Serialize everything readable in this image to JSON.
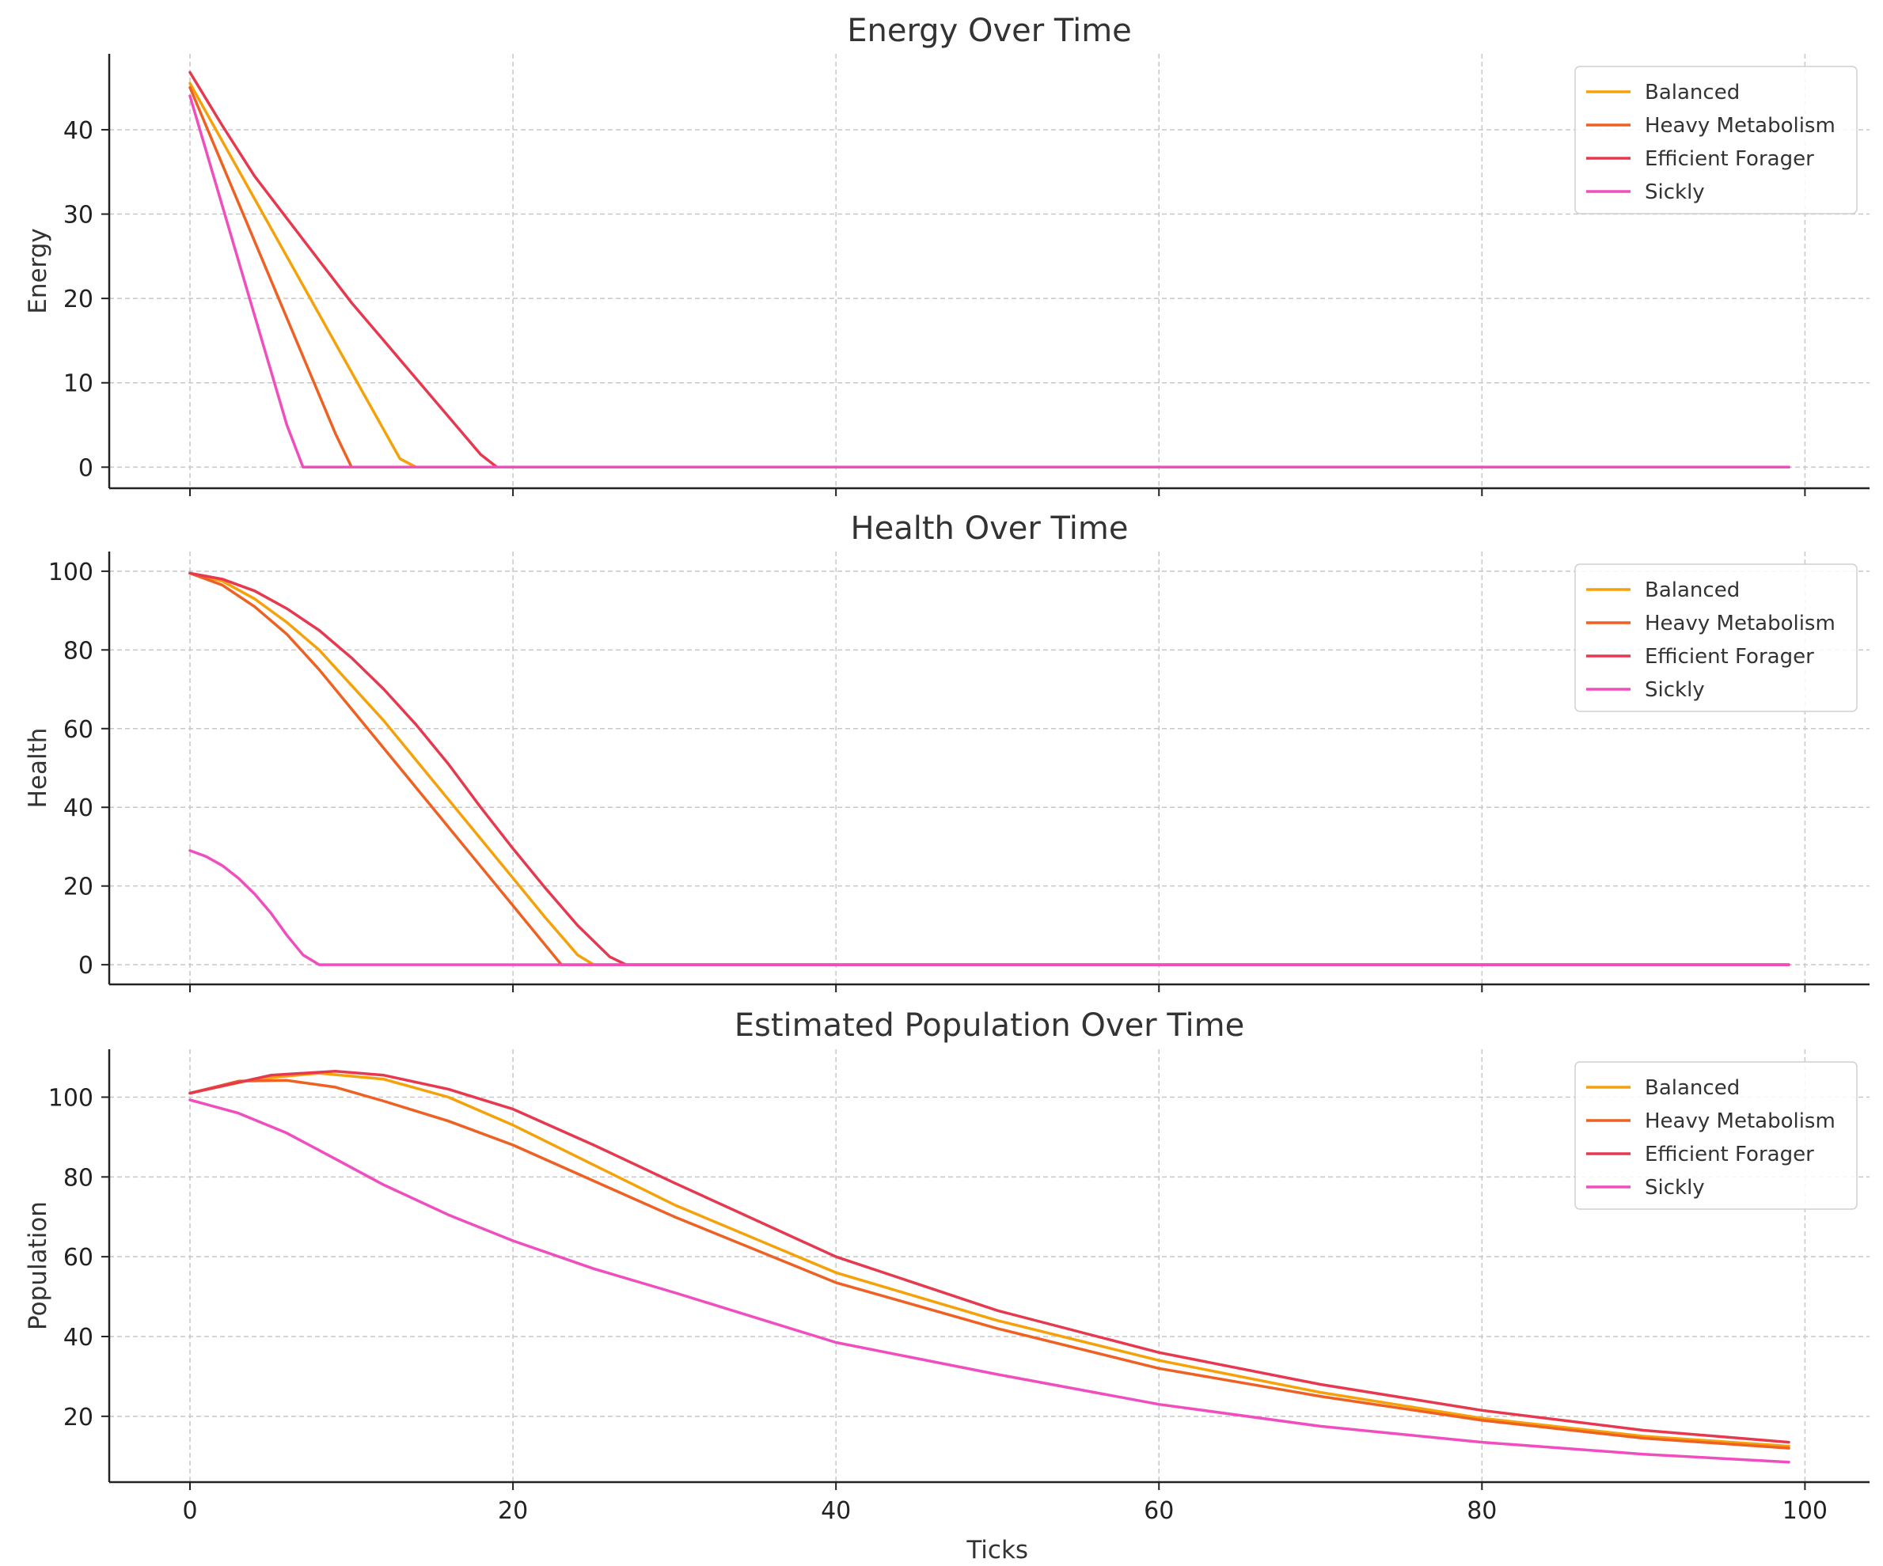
{
  "chart_data": [
    {
      "type": "line",
      "title": "Energy Over Time",
      "xlabel": "",
      "ylabel": "Energy",
      "xlim": [
        -5,
        104
      ],
      "ylim": [
        -2.5,
        49
      ],
      "xticks": [
        0,
        20,
        40,
        60,
        80,
        100
      ],
      "yticks": [
        0,
        10,
        20,
        30,
        40
      ],
      "xticklabels_shown": false,
      "grid": true,
      "legend_position": "top-right",
      "series": [
        {
          "name": "Balanced",
          "color": "#F5A10A",
          "x": [
            0,
            13,
            14,
            99
          ],
          "y": [
            45.5,
            1,
            0,
            0
          ]
        },
        {
          "name": "Heavy Metabolism",
          "color": "#EE6123",
          "x": [
            0,
            9,
            10,
            99
          ],
          "y": [
            45,
            4,
            0,
            0
          ]
        },
        {
          "name": "Efficient Forager",
          "color": "#E63950",
          "x": [
            0,
            2,
            4,
            6,
            8,
            10,
            12,
            14,
            16,
            18,
            19,
            99
          ],
          "y": [
            46.8,
            40.5,
            34.5,
            29.5,
            24.5,
            19.5,
            15,
            10.5,
            6,
            1.5,
            0,
            0
          ]
        },
        {
          "name": "Sickly",
          "color": "#F04EBF",
          "x": [
            0,
            2,
            4,
            6,
            7,
            99
          ],
          "y": [
            44,
            31,
            18,
            5,
            0,
            0
          ]
        }
      ]
    },
    {
      "type": "line",
      "title": "Health Over Time",
      "xlabel": "",
      "ylabel": "Health",
      "xlim": [
        -5,
        104
      ],
      "ylim": [
        -5,
        105
      ],
      "xticks": [
        0,
        20,
        40,
        60,
        80,
        100
      ],
      "yticks": [
        0,
        20,
        40,
        60,
        80,
        100
      ],
      "xticklabels_shown": false,
      "grid": true,
      "legend_position": "top-right",
      "series": [
        {
          "name": "Balanced",
          "color": "#F5A10A",
          "x": [
            0,
            2,
            4,
            6,
            8,
            10,
            12,
            14,
            16,
            18,
            20,
            22,
            24,
            25,
            99
          ],
          "y": [
            99.5,
            97.5,
            93,
            87,
            80,
            71,
            62,
            52,
            42,
            32,
            22,
            12,
            2.5,
            0,
            0
          ]
        },
        {
          "name": "Heavy Metabolism",
          "color": "#EE6123",
          "x": [
            0,
            2,
            4,
            6,
            8,
            10,
            12,
            14,
            16,
            18,
            20,
            22,
            23,
            99
          ],
          "y": [
            99.5,
            96.5,
            91,
            84,
            75,
            65,
            55,
            45,
            35,
            25,
            15,
            5,
            0,
            0
          ]
        },
        {
          "name": "Efficient Forager",
          "color": "#E63950",
          "x": [
            0,
            2,
            4,
            6,
            8,
            10,
            12,
            14,
            16,
            18,
            20,
            22,
            24,
            26,
            27,
            99
          ],
          "y": [
            99.5,
            98,
            95,
            90.5,
            85,
            78,
            70,
            61,
            51,
            40,
            29.5,
            19.5,
            10,
            2,
            0,
            0
          ]
        },
        {
          "name": "Sickly",
          "color": "#F04EBF",
          "x": [
            0,
            1,
            2,
            3,
            4,
            5,
            6,
            7,
            8,
            99
          ],
          "y": [
            29,
            27.5,
            25.2,
            22,
            18,
            13.2,
            7.5,
            2.5,
            0,
            0
          ]
        }
      ]
    },
    {
      "type": "line",
      "title": "Estimated Population Over Time",
      "xlabel": "Ticks",
      "ylabel": "Population",
      "xlim": [
        -5,
        104
      ],
      "ylim": [
        3.5,
        112
      ],
      "xticks": [
        0,
        20,
        40,
        60,
        80,
        100
      ],
      "yticks": [
        20,
        40,
        60,
        80,
        100
      ],
      "xticklabels_shown": true,
      "grid": true,
      "legend_position": "top-right",
      "series": [
        {
          "name": "Balanced",
          "color": "#F5A10A",
          "x": [
            0,
            4,
            8,
            12,
            16,
            20,
            25,
            30,
            40,
            50,
            60,
            70,
            80,
            90,
            99
          ],
          "y": [
            101,
            104.5,
            106,
            104.5,
            100,
            93,
            83,
            73,
            56,
            44,
            34,
            26,
            19.5,
            15,
            12.5
          ]
        },
        {
          "name": "Heavy Metabolism",
          "color": "#EE6123",
          "x": [
            0,
            3,
            6,
            9,
            12,
            16,
            20,
            25,
            30,
            40,
            50,
            60,
            70,
            80,
            90,
            99
          ],
          "y": [
            101,
            104,
            104.2,
            102.5,
            99,
            94,
            88,
            79,
            70,
            53.5,
            42,
            32,
            25,
            19,
            14.5,
            12
          ]
        },
        {
          "name": "Efficient Forager",
          "color": "#E63950",
          "x": [
            0,
            5,
            9,
            12,
            16,
            20,
            25,
            30,
            40,
            50,
            60,
            70,
            80,
            90,
            99
          ],
          "y": [
            101,
            105.5,
            106.5,
            105.5,
            102,
            97,
            88,
            78.5,
            60,
            46.5,
            36,
            28,
            21.5,
            16.5,
            13.5
          ]
        },
        {
          "name": "Sickly",
          "color": "#F04EBF",
          "x": [
            0,
            3,
            6,
            9,
            12,
            16,
            20,
            25,
            30,
            40,
            50,
            60,
            70,
            80,
            90,
            99
          ],
          "y": [
            99.3,
            96,
            91,
            84.5,
            78,
            70.5,
            64,
            57,
            51,
            38.5,
            30.5,
            23,
            17.5,
            13.5,
            10.5,
            8.5
          ]
        }
      ]
    }
  ]
}
